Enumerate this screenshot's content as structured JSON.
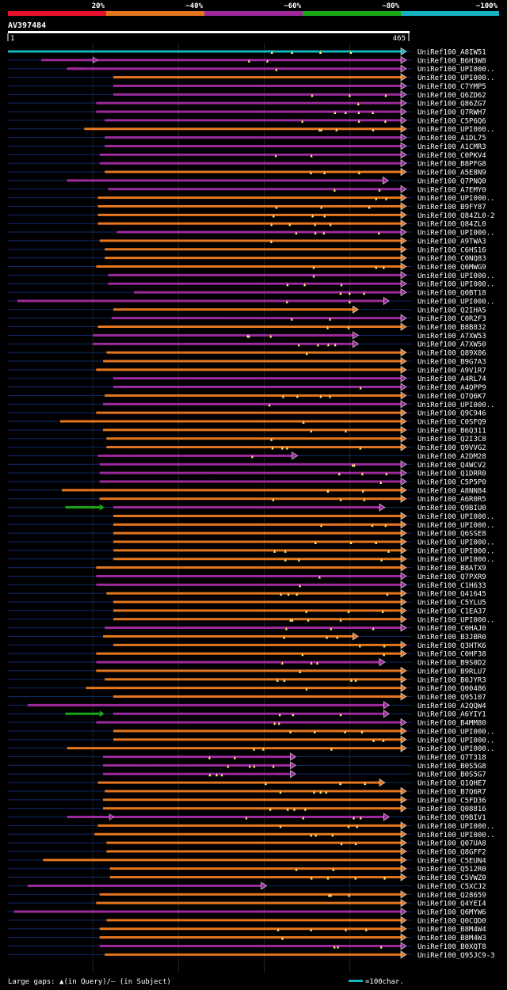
{
  "chart_data": {
    "type": "alignment-overview",
    "query_id": "AV397484",
    "query_start": 1,
    "query_end": 465,
    "identity_scale": [
      {
        "label": "20%",
        "color": "#e8102a"
      },
      {
        "label": "~40%",
        "color": "#e6761e"
      },
      {
        "label": "~60%",
        "color": "#9c2a9c"
      },
      {
        "label": "~80%",
        "color": "#1aa81a"
      },
      {
        "label": "~100%",
        "color": "#16b4c0"
      }
    ],
    "hits": [
      {
        "name": "UniRef100_A8IW51",
        "start": 1,
        "end": 465,
        "color": "cyan"
      },
      {
        "name": "UniRef100_B6H3W8",
        "start": 40,
        "end": 465,
        "color": "purple",
        "break": 105
      },
      {
        "name": "UniRef100_UPI000..",
        "start": 70,
        "end": 465,
        "color": "purple",
        "pre": [
          70,
          88
        ]
      },
      {
        "name": "UniRef100_UPI000..",
        "start": 124,
        "end": 465,
        "color": "orange"
      },
      {
        "name": "UniRef100_C7YMP5",
        "start": 124,
        "end": 465,
        "color": "purple"
      },
      {
        "name": "UniRef100_Q6ZD62",
        "start": 124,
        "end": 465,
        "color": "purple"
      },
      {
        "name": "UniRef100_Q86ZG7",
        "start": 104,
        "end": 465,
        "color": "purple"
      },
      {
        "name": "UniRef100_Q7RWH7",
        "start": 104,
        "end": 465,
        "color": "purple"
      },
      {
        "name": "UniRef100_C5P6Q6",
        "start": 114,
        "end": 465,
        "color": "purple"
      },
      {
        "name": "UniRef100_UPI000..",
        "start": 90,
        "end": 465,
        "color": "orange"
      },
      {
        "name": "UniRef100_A1DL75",
        "start": 114,
        "end": 465,
        "color": "purple"
      },
      {
        "name": "UniRef100_A1CMR3",
        "start": 114,
        "end": 465,
        "color": "purple"
      },
      {
        "name": "UniRef100_C0PKV4",
        "start": 108,
        "end": 465,
        "color": "purple"
      },
      {
        "name": "UniRef100_B8PFG8",
        "start": 108,
        "end": 465,
        "color": "purple"
      },
      {
        "name": "UniRef100_A5E8N9",
        "start": 114,
        "end": 465,
        "color": "orange"
      },
      {
        "name": "UniRef100_Q7PNQ0",
        "start": 70,
        "end": 444,
        "color": "purple",
        "pre": [
          70,
          88
        ]
      },
      {
        "name": "UniRef100_A7EMY0",
        "start": 118,
        "end": 465,
        "color": "purple"
      },
      {
        "name": "UniRef100_UPI000..",
        "start": 106,
        "end": 465,
        "color": "orange"
      },
      {
        "name": "UniRef100_B9FY87",
        "start": 106,
        "end": 465,
        "color": "orange"
      },
      {
        "name": "UniRef100_Q84ZL0-2",
        "start": 106,
        "end": 465,
        "color": "orange"
      },
      {
        "name": "UniRef100_Q84ZL0",
        "start": 106,
        "end": 465,
        "color": "orange"
      },
      {
        "name": "UniRef100_UPI000..",
        "start": 128,
        "end": 465,
        "color": "purple"
      },
      {
        "name": "UniRef100_A9TWA3",
        "start": 108,
        "end": 465,
        "color": "orange"
      },
      {
        "name": "UniRef100_C6HS16",
        "start": 114,
        "end": 465,
        "color": "orange"
      },
      {
        "name": "UniRef100_C0NQ83",
        "start": 114,
        "end": 465,
        "color": "orange"
      },
      {
        "name": "UniRef100_Q6MWG9",
        "start": 104,
        "end": 465,
        "color": "orange"
      },
      {
        "name": "UniRef100_UPI000..",
        "start": 118,
        "end": 465,
        "color": "purple"
      },
      {
        "name": "UniRef100_UPI000..",
        "start": 118,
        "end": 465,
        "color": "purple"
      },
      {
        "name": "UniRef100_Q0BT18",
        "start": 148,
        "end": 465,
        "color": "purple"
      },
      {
        "name": "UniRef100_UPI000..",
        "start": 12,
        "end": 445,
        "color": "purple"
      },
      {
        "name": "UniRef100_Q2IHA5",
        "start": 124,
        "end": 409,
        "color": "orange"
      },
      {
        "name": "UniRef100_C0R2F3",
        "start": 122,
        "end": 465,
        "color": "purple"
      },
      {
        "name": "UniRef100_B8B832",
        "start": 106,
        "end": 465,
        "color": "orange"
      },
      {
        "name": "UniRef100_A7XW53",
        "start": 100,
        "end": 409,
        "color": "purple"
      },
      {
        "name": "UniRef100_A7XW50",
        "start": 100,
        "end": 409,
        "color": "purple"
      },
      {
        "name": "UniRef100_Q89X06",
        "start": 116,
        "end": 465,
        "color": "orange"
      },
      {
        "name": "UniRef100_B9G7A3",
        "start": 112,
        "end": 465,
        "color": "orange"
      },
      {
        "name": "UniRef100_A9V1R7",
        "start": 104,
        "end": 465,
        "color": "orange"
      },
      {
        "name": "UniRef100_A4RL74",
        "start": 124,
        "end": 465,
        "color": "purple"
      },
      {
        "name": "UniRef100_A4QPP9",
        "start": 124,
        "end": 465,
        "color": "purple"
      },
      {
        "name": "UniRef100_Q7Q6K7",
        "start": 114,
        "end": 465,
        "color": "orange"
      },
      {
        "name": "UniRef100_UPI000..",
        "start": 112,
        "end": 465,
        "color": "purple"
      },
      {
        "name": "UniRef100_Q9C946",
        "start": 104,
        "end": 465,
        "color": "orange"
      },
      {
        "name": "UniRef100_C0SFQ9",
        "start": 62,
        "end": 465,
        "color": "orange"
      },
      {
        "name": "UniRef100_B6Q311",
        "start": 112,
        "end": 465,
        "color": "orange"
      },
      {
        "name": "UniRef100_Q2I3C8",
        "start": 116,
        "end": 465,
        "color": "orange"
      },
      {
        "name": "UniRef100_Q9VVG2",
        "start": 116,
        "end": 465,
        "color": "orange"
      },
      {
        "name": "UniRef100_A2DM28",
        "start": 106,
        "end": 338,
        "color": "purple"
      },
      {
        "name": "UniRef100_Q4WCV2",
        "start": 108,
        "end": 465,
        "color": "purple"
      },
      {
        "name": "UniRef100_Q1DRR0",
        "start": 108,
        "end": 465,
        "color": "purple"
      },
      {
        "name": "UniRef100_C5P5P0",
        "start": 108,
        "end": 465,
        "color": "purple"
      },
      {
        "name": "UniRef100_A8NN84",
        "start": 64,
        "end": 465,
        "color": "orange"
      },
      {
        "name": "UniRef100_A6R0R5",
        "start": 108,
        "end": 465,
        "color": "orange"
      },
      {
        "name": "UniRef100_Q9BIU0",
        "start": 124,
        "end": 440,
        "color": "purple",
        "pre": [
          68,
          108
        ],
        "pre_color": "green"
      },
      {
        "name": "UniRef100_UPI000..",
        "start": 124,
        "end": 465,
        "color": "orange"
      },
      {
        "name": "UniRef100_UPI000..",
        "start": 124,
        "end": 465,
        "color": "orange"
      },
      {
        "name": "UniRef100_Q6SSE8",
        "start": 124,
        "end": 465,
        "color": "orange"
      },
      {
        "name": "UniRef100_UPI000..",
        "start": 124,
        "end": 465,
        "color": "orange"
      },
      {
        "name": "UniRef100_UPI000..",
        "start": 124,
        "end": 465,
        "color": "orange"
      },
      {
        "name": "UniRef100_UPI000..",
        "start": 124,
        "end": 465,
        "color": "orange"
      },
      {
        "name": "UniRef100_B8ATX9",
        "start": 104,
        "end": 465,
        "color": "orange"
      },
      {
        "name": "UniRef100_Q7PXR9",
        "start": 104,
        "end": 465,
        "color": "purple"
      },
      {
        "name": "UniRef100_C1H633",
        "start": 104,
        "end": 465,
        "color": "purple"
      },
      {
        "name": "UniRef100_Q41645",
        "start": 116,
        "end": 465,
        "color": "orange"
      },
      {
        "name": "UniRef100_C5YLU5",
        "start": 124,
        "end": 465,
        "color": "orange"
      },
      {
        "name": "UniRef100_C1EA37",
        "start": 124,
        "end": 465,
        "color": "orange"
      },
      {
        "name": "UniRef100_UPI000..",
        "start": 124,
        "end": 465,
        "color": "orange"
      },
      {
        "name": "UniRef100_C0HAJ0",
        "start": 114,
        "end": 465,
        "color": "purple"
      },
      {
        "name": "UniRef100_B3JBR0",
        "start": 112,
        "end": 409,
        "color": "orange"
      },
      {
        "name": "UniRef100_Q3HTK6",
        "start": 124,
        "end": 465,
        "color": "orange"
      },
      {
        "name": "UniRef100_C0HF38",
        "start": 104,
        "end": 465,
        "color": "orange"
      },
      {
        "name": "UniRef100_B9S0D2",
        "start": 104,
        "end": 440,
        "color": "purple"
      },
      {
        "name": "UniRef100_B9RLU7",
        "start": 104,
        "end": 465,
        "color": "orange"
      },
      {
        "name": "UniRef100_B0JYR3",
        "start": 114,
        "end": 465,
        "color": "orange"
      },
      {
        "name": "UniRef100_Q00486",
        "start": 92,
        "end": 465,
        "color": "orange"
      },
      {
        "name": "UniRef100_Q95107",
        "start": 124,
        "end": 465,
        "color": "orange"
      },
      {
        "name": "UniRef100_A2QQW4",
        "start": 24,
        "end": 445,
        "color": "purple"
      },
      {
        "name": "UniRef100_A6YIY1",
        "start": 124,
        "end": 445,
        "color": "purple",
        "pre": [
          68,
          108
        ],
        "pre_color": "green"
      },
      {
        "name": "UniRef100_B4MM80",
        "start": 104,
        "end": 465,
        "color": "purple"
      },
      {
        "name": "UniRef100_UPI000..",
        "start": 124,
        "end": 465,
        "color": "orange"
      },
      {
        "name": "UniRef100_UPI000..",
        "start": 124,
        "end": 465,
        "color": "orange"
      },
      {
        "name": "UniRef100_UPI000..",
        "start": 70,
        "end": 465,
        "color": "orange"
      },
      {
        "name": "UniRef100_Q7T318",
        "start": 112,
        "end": 336,
        "color": "purple"
      },
      {
        "name": "UniRef100_B0S5G8",
        "start": 112,
        "end": 336,
        "color": "purple"
      },
      {
        "name": "UniRef100_B0S5G7",
        "start": 112,
        "end": 336,
        "color": "purple"
      },
      {
        "name": "UniRef100_Q1QHE7",
        "start": 106,
        "end": 440,
        "color": "orange"
      },
      {
        "name": "UniRef100_B7Q6R7",
        "start": 114,
        "end": 465,
        "color": "orange"
      },
      {
        "name": "UniRef100_C5FD36",
        "start": 112,
        "end": 465,
        "color": "orange"
      },
      {
        "name": "UniRef100_Q08816",
        "start": 112,
        "end": 465,
        "color": "orange"
      },
      {
        "name": "UniRef100_Q9BIV1",
        "start": 70,
        "end": 445,
        "color": "purple",
        "break": 124
      },
      {
        "name": "UniRef100_UPI000..",
        "start": 106,
        "end": 465,
        "color": "orange"
      },
      {
        "name": "UniRef100_UPI000..",
        "start": 102,
        "end": 465,
        "color": "orange"
      },
      {
        "name": "UniRef100_Q07UA8",
        "start": 116,
        "end": 465,
        "color": "orange"
      },
      {
        "name": "UniRef100_Q8GFF2",
        "start": 116,
        "end": 465,
        "color": "orange"
      },
      {
        "name": "UniRef100_C5EUN4",
        "start": 42,
        "end": 465,
        "color": "orange"
      },
      {
        "name": "UniRef100_Q512R0",
        "start": 120,
        "end": 465,
        "color": "orange"
      },
      {
        "name": "UniRef100_C5VWZ0",
        "start": 120,
        "end": 465,
        "color": "orange"
      },
      {
        "name": "UniRef100_C5XCJ2",
        "start": 24,
        "end": 302,
        "color": "purple"
      },
      {
        "name": "UniRef100_Q28659",
        "start": 108,
        "end": 465,
        "color": "orange"
      },
      {
        "name": "UniRef100_Q4YEI4",
        "start": 104,
        "end": 465,
        "color": "orange"
      },
      {
        "name": "UniRef100_Q6MYW6",
        "start": 8,
        "end": 465,
        "color": "purple"
      },
      {
        "name": "UniRef100_Q0CQD0",
        "start": 116,
        "end": 465,
        "color": "orange"
      },
      {
        "name": "UniRef100_B8M4W4",
        "start": 108,
        "end": 465,
        "color": "orange"
      },
      {
        "name": "UniRef100_B8M4W3",
        "start": 108,
        "end": 465,
        "color": "orange"
      },
      {
        "name": "UniRef100_B0XQT8",
        "start": 108,
        "end": 465,
        "color": "purple"
      },
      {
        "name": "UniRef100_Q95JC9-3",
        "start": 114,
        "end": 465,
        "color": "orange"
      }
    ],
    "legend": {
      "gaps_text": "Large gaps: ▲(in Query)/– (in Subject)",
      "scale_text": "=100char."
    }
  },
  "colors": {
    "background": "#000000",
    "text": "#ffffff",
    "cyan": "#16b4c0",
    "purple": "#9c2a9c",
    "orange": "#e6761e",
    "green": "#1aa81a",
    "red": "#e8102a",
    "connector": "#102a6a",
    "gap_marker": "#ffef7a"
  }
}
